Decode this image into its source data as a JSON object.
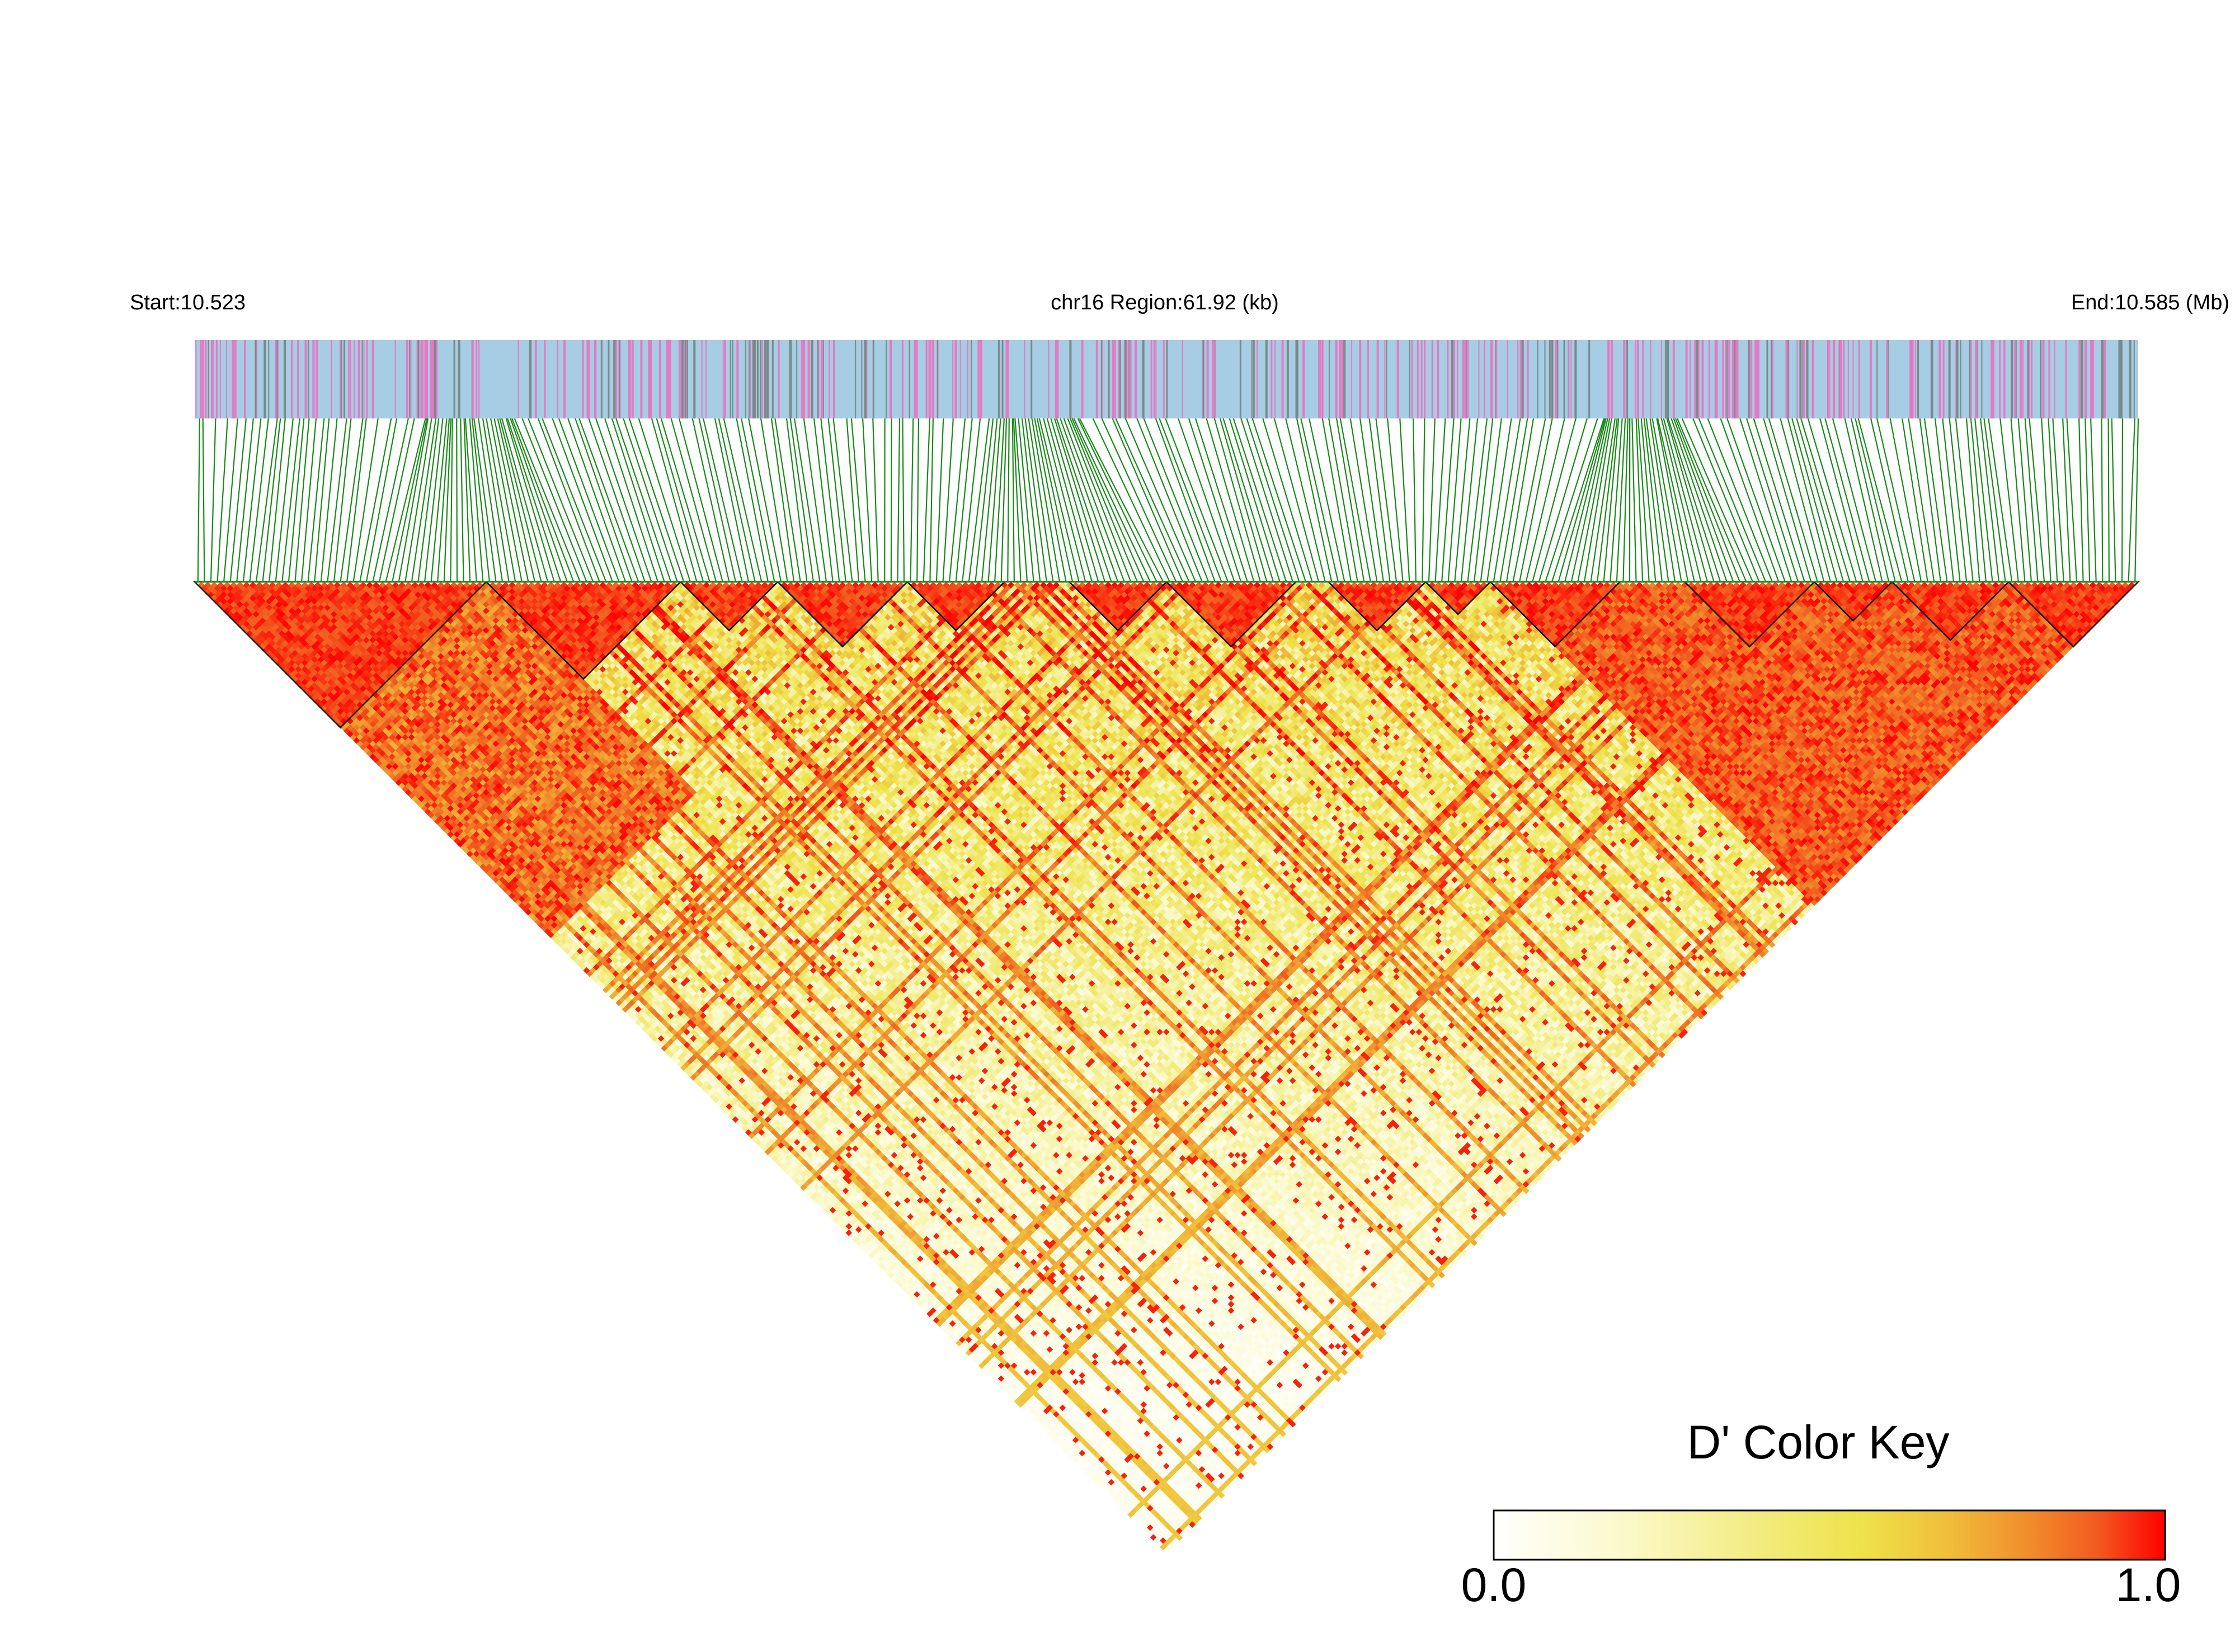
{
  "chart_data": {
    "type": "heatmap",
    "subtype": "LD triangle (LDheatmap)",
    "chromosome": "chr16",
    "start_label": "Start:10.523",
    "region_label": "chr16 Region:61.92 (kb)",
    "end_label": "End:10.585 (Mb)",
    "start_mb": 10.523,
    "end_mb": 10.585,
    "region_kb": 61.92,
    "n_snps": 300,
    "measure": "D'",
    "color_key": {
      "title": "D' Color Key",
      "min_label": "0.0",
      "max_label": "1.0",
      "min": 0.0,
      "max": 1.0,
      "colors": [
        "#ffffff",
        "#fbf9c8",
        "#f2eb7e",
        "#eee24a",
        "#f0bd3a",
        "#f08c2c",
        "#f25a1f",
        "#ff0000"
      ]
    },
    "gene_track_colors": {
      "background": "#a6cde3",
      "marks_major": "#e37ac4",
      "marks_minor": "#7a8a8a"
    },
    "snp_line_color": "#1a8a1a",
    "high_ld_blocks": [
      {
        "from_snp": 0,
        "to_snp": 45
      },
      {
        "from_snp": 45,
        "to_snp": 75
      },
      {
        "from_snp": 75,
        "to_snp": 90
      },
      {
        "from_snp": 90,
        "to_snp": 110
      },
      {
        "from_snp": 110,
        "to_snp": 125
      },
      {
        "from_snp": 135,
        "to_snp": 150
      },
      {
        "from_snp": 150,
        "to_snp": 170
      },
      {
        "from_snp": 175,
        "to_snp": 190
      },
      {
        "from_snp": 190,
        "to_snp": 200
      },
      {
        "from_snp": 200,
        "to_snp": 220
      },
      {
        "from_snp": 230,
        "to_snp": 250
      },
      {
        "from_snp": 250,
        "to_snp": 262
      },
      {
        "from_snp": 262,
        "to_snp": 280
      },
      {
        "from_snp": 280,
        "to_snp": 300
      }
    ]
  }
}
